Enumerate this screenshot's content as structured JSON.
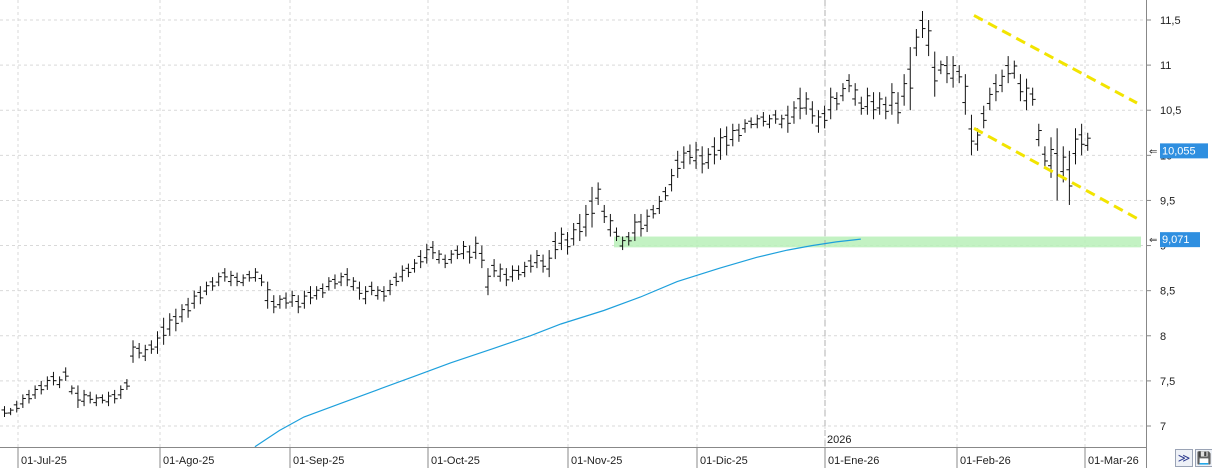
{
  "chart_data": {
    "type": "ohlc",
    "x_ticks": [
      "01-Jul-25",
      "01-Ago-25",
      "01-Sep-25",
      "01-Oct-25",
      "01-Nov-25",
      "01-Dic-25",
      "01-Ene-26",
      "01-Feb-26",
      "01-Mar-26"
    ],
    "year_marker": "2026",
    "y_ticks": [
      "7",
      "7,5",
      "8",
      "8,5",
      "9",
      "9,5",
      "10",
      "10,5",
      "11",
      "11,5"
    ],
    "y_tick_values": [
      7,
      7.5,
      8,
      8.5,
      9,
      9.5,
      10,
      10.5,
      11,
      11.5
    ],
    "ylim": [
      6.85,
      11.7
    ],
    "grid": true,
    "last_price": "10,055",
    "last_price_value": 10.055,
    "ma_value": "9,071",
    "ma_value_num": 9.071,
    "support_zone": [
      8.98,
      9.1
    ],
    "channel_upper": [
      [
        11.55,
        199
      ],
      [
        10.58,
        242
      ]
    ],
    "channel_lower": [
      [
        10.3,
        199
      ],
      [
        9.3,
        242
      ]
    ],
    "colors": {
      "bars": "#111111",
      "ma": "#1ea0dc",
      "zone": "#b9f0b9",
      "channel": "#f2e400",
      "price_tag": "#2f8fe0"
    },
    "series": [
      {
        "values": [
          [
            7.1,
            7.22
          ],
          [
            7.12,
            7.2
          ],
          [
            7.15,
            7.28
          ],
          [
            7.2,
            7.35
          ],
          [
            7.25,
            7.4
          ],
          [
            7.3,
            7.45
          ],
          [
            7.35,
            7.5
          ],
          [
            7.4,
            7.55
          ],
          [
            7.45,
            7.6
          ],
          [
            7.42,
            7.55
          ],
          [
            7.5,
            7.65
          ],
          [
            7.35,
            7.45
          ],
          [
            7.2,
            7.45
          ],
          [
            7.22,
            7.4
          ],
          [
            7.25,
            7.38
          ],
          [
            7.22,
            7.35
          ],
          [
            7.25,
            7.35
          ],
          [
            7.22,
            7.38
          ],
          [
            7.25,
            7.4
          ],
          [
            7.3,
            7.45
          ],
          [
            7.4,
            7.52
          ],
          [
            7.7,
            7.95
          ],
          [
            7.75,
            7.92
          ],
          [
            7.72,
            7.9
          ],
          [
            7.8,
            7.95
          ],
          [
            7.8,
            8.05
          ],
          [
            7.9,
            8.2
          ],
          [
            8.0,
            8.25
          ],
          [
            8.05,
            8.3
          ],
          [
            8.15,
            8.35
          ],
          [
            8.2,
            8.42
          ],
          [
            8.3,
            8.5
          ],
          [
            8.35,
            8.55
          ],
          [
            8.45,
            8.6
          ],
          [
            8.5,
            8.65
          ],
          [
            8.55,
            8.7
          ],
          [
            8.6,
            8.75
          ],
          [
            8.55,
            8.72
          ],
          [
            8.55,
            8.7
          ],
          [
            8.55,
            8.68
          ],
          [
            8.6,
            8.72
          ],
          [
            8.6,
            8.75
          ],
          [
            8.55,
            8.68
          ],
          [
            8.3,
            8.6
          ],
          [
            8.25,
            8.45
          ],
          [
            8.3,
            8.45
          ],
          [
            8.3,
            8.48
          ],
          [
            8.32,
            8.5
          ],
          [
            8.25,
            8.45
          ],
          [
            8.3,
            8.5
          ],
          [
            8.35,
            8.55
          ],
          [
            8.4,
            8.55
          ],
          [
            8.42,
            8.58
          ],
          [
            8.5,
            8.65
          ],
          [
            8.52,
            8.68
          ],
          [
            8.55,
            8.7
          ],
          [
            8.55,
            8.75
          ],
          [
            8.5,
            8.65
          ],
          [
            8.4,
            8.6
          ],
          [
            8.35,
            8.55
          ],
          [
            8.45,
            8.6
          ],
          [
            8.4,
            8.55
          ],
          [
            8.38,
            8.55
          ],
          [
            8.45,
            8.62
          ],
          [
            8.55,
            8.7
          ],
          [
            8.6,
            8.78
          ],
          [
            8.65,
            8.8
          ],
          [
            8.7,
            8.85
          ],
          [
            8.75,
            8.95
          ],
          [
            8.8,
            9.02
          ],
          [
            8.85,
            9.05
          ],
          [
            8.8,
            8.95
          ],
          [
            8.75,
            8.9
          ],
          [
            8.8,
            8.95
          ],
          [
            8.85,
            9.0
          ],
          [
            8.85,
            9.05
          ],
          [
            8.8,
            9.0
          ],
          [
            8.85,
            9.1
          ],
          [
            8.75,
            9.0
          ],
          [
            8.45,
            8.75
          ],
          [
            8.65,
            8.85
          ],
          [
            8.6,
            8.8
          ],
          [
            8.55,
            8.75
          ],
          [
            8.6,
            8.78
          ],
          [
            8.62,
            8.78
          ],
          [
            8.65,
            8.82
          ],
          [
            8.7,
            8.9
          ],
          [
            8.75,
            8.95
          ],
          [
            8.7,
            8.9
          ],
          [
            8.65,
            8.95
          ],
          [
            8.85,
            9.15
          ],
          [
            8.95,
            9.2
          ],
          [
            8.9,
            9.15
          ],
          [
            9.0,
            9.25
          ],
          [
            9.05,
            9.35
          ],
          [
            9.1,
            9.45
          ],
          [
            9.2,
            9.65
          ],
          [
            9.45,
            9.7
          ],
          [
            9.25,
            9.45
          ],
          [
            9.1,
            9.35
          ],
          [
            9.05,
            9.2
          ],
          [
            8.95,
            9.1
          ],
          [
            9.0,
            9.15
          ],
          [
            9.05,
            9.35
          ],
          [
            9.1,
            9.35
          ],
          [
            9.15,
            9.4
          ],
          [
            9.3,
            9.45
          ],
          [
            9.35,
            9.55
          ],
          [
            9.5,
            9.65
          ],
          [
            9.6,
            9.85
          ],
          [
            9.75,
            10.05
          ],
          [
            9.85,
            10.1
          ],
          [
            9.9,
            10.12
          ],
          [
            9.85,
            10.15
          ],
          [
            9.8,
            10.1
          ],
          [
            9.85,
            10.08
          ],
          [
            9.9,
            10.2
          ],
          [
            9.95,
            10.3
          ],
          [
            10.0,
            10.32
          ],
          [
            10.1,
            10.35
          ],
          [
            10.15,
            10.35
          ],
          [
            10.25,
            10.4
          ],
          [
            10.3,
            10.42
          ],
          [
            10.3,
            10.45
          ],
          [
            10.32,
            10.48
          ],
          [
            10.3,
            10.45
          ],
          [
            10.35,
            10.5
          ],
          [
            10.3,
            10.45
          ],
          [
            10.25,
            10.55
          ],
          [
            10.35,
            10.6
          ],
          [
            10.4,
            10.75
          ],
          [
            10.45,
            10.7
          ],
          [
            10.35,
            10.6
          ],
          [
            10.25,
            10.5
          ],
          [
            10.3,
            10.55
          ],
          [
            10.4,
            10.75
          ],
          [
            10.5,
            10.7
          ],
          [
            10.6,
            10.8
          ],
          [
            10.7,
            10.9
          ],
          [
            10.55,
            10.8
          ],
          [
            10.45,
            10.65
          ],
          [
            10.45,
            10.75
          ],
          [
            10.4,
            10.7
          ],
          [
            10.45,
            10.7
          ],
          [
            10.4,
            10.65
          ],
          [
            10.45,
            10.8
          ],
          [
            10.35,
            10.7
          ],
          [
            10.55,
            10.9
          ],
          [
            10.5,
            11.2
          ],
          [
            11.1,
            11.4
          ],
          [
            11.3,
            11.6
          ],
          [
            11.1,
            11.5
          ],
          [
            10.65,
            11.15
          ],
          [
            10.9,
            11.05
          ],
          [
            10.8,
            11.1
          ],
          [
            10.75,
            11.1
          ],
          [
            10.8,
            11.0
          ],
          [
            10.45,
            10.9
          ],
          [
            10.0,
            10.45
          ],
          [
            10.05,
            10.3
          ],
          [
            10.3,
            10.55
          ],
          [
            10.5,
            10.75
          ],
          [
            10.6,
            10.9
          ],
          [
            10.7,
            10.95
          ],
          [
            10.8,
            11.1
          ],
          [
            10.85,
            11.05
          ],
          [
            10.6,
            10.9
          ],
          [
            10.5,
            10.85
          ],
          [
            10.55,
            10.75
          ],
          [
            10.1,
            10.35
          ],
          [
            9.85,
            10.1
          ],
          [
            9.75,
            10.2
          ],
          [
            9.5,
            10.3
          ],
          [
            9.7,
            10.1
          ],
          [
            9.45,
            10.05
          ],
          [
            9.9,
            10.3
          ],
          [
            10.0,
            10.35
          ],
          [
            10.05,
            10.25
          ]
        ]
      }
    ],
    "moving_average": {
      "values": [
        [
          6.77,
          41
        ],
        [
          6.95,
          45
        ],
        [
          7.1,
          49
        ],
        [
          7.25,
          55
        ],
        [
          7.4,
          61
        ],
        [
          7.55,
          67
        ],
        [
          7.7,
          73
        ],
        [
          7.86,
          80
        ],
        [
          8.0,
          86
        ],
        [
          8.13,
          91
        ],
        [
          8.28,
          98
        ],
        [
          8.43,
          104
        ],
        [
          8.6,
          110
        ],
        [
          8.75,
          117
        ],
        [
          8.87,
          123
        ],
        [
          8.95,
          128
        ],
        [
          9.0,
          132
        ],
        [
          9.04,
          136
        ],
        [
          9.071,
          140
        ]
      ]
    }
  }
}
